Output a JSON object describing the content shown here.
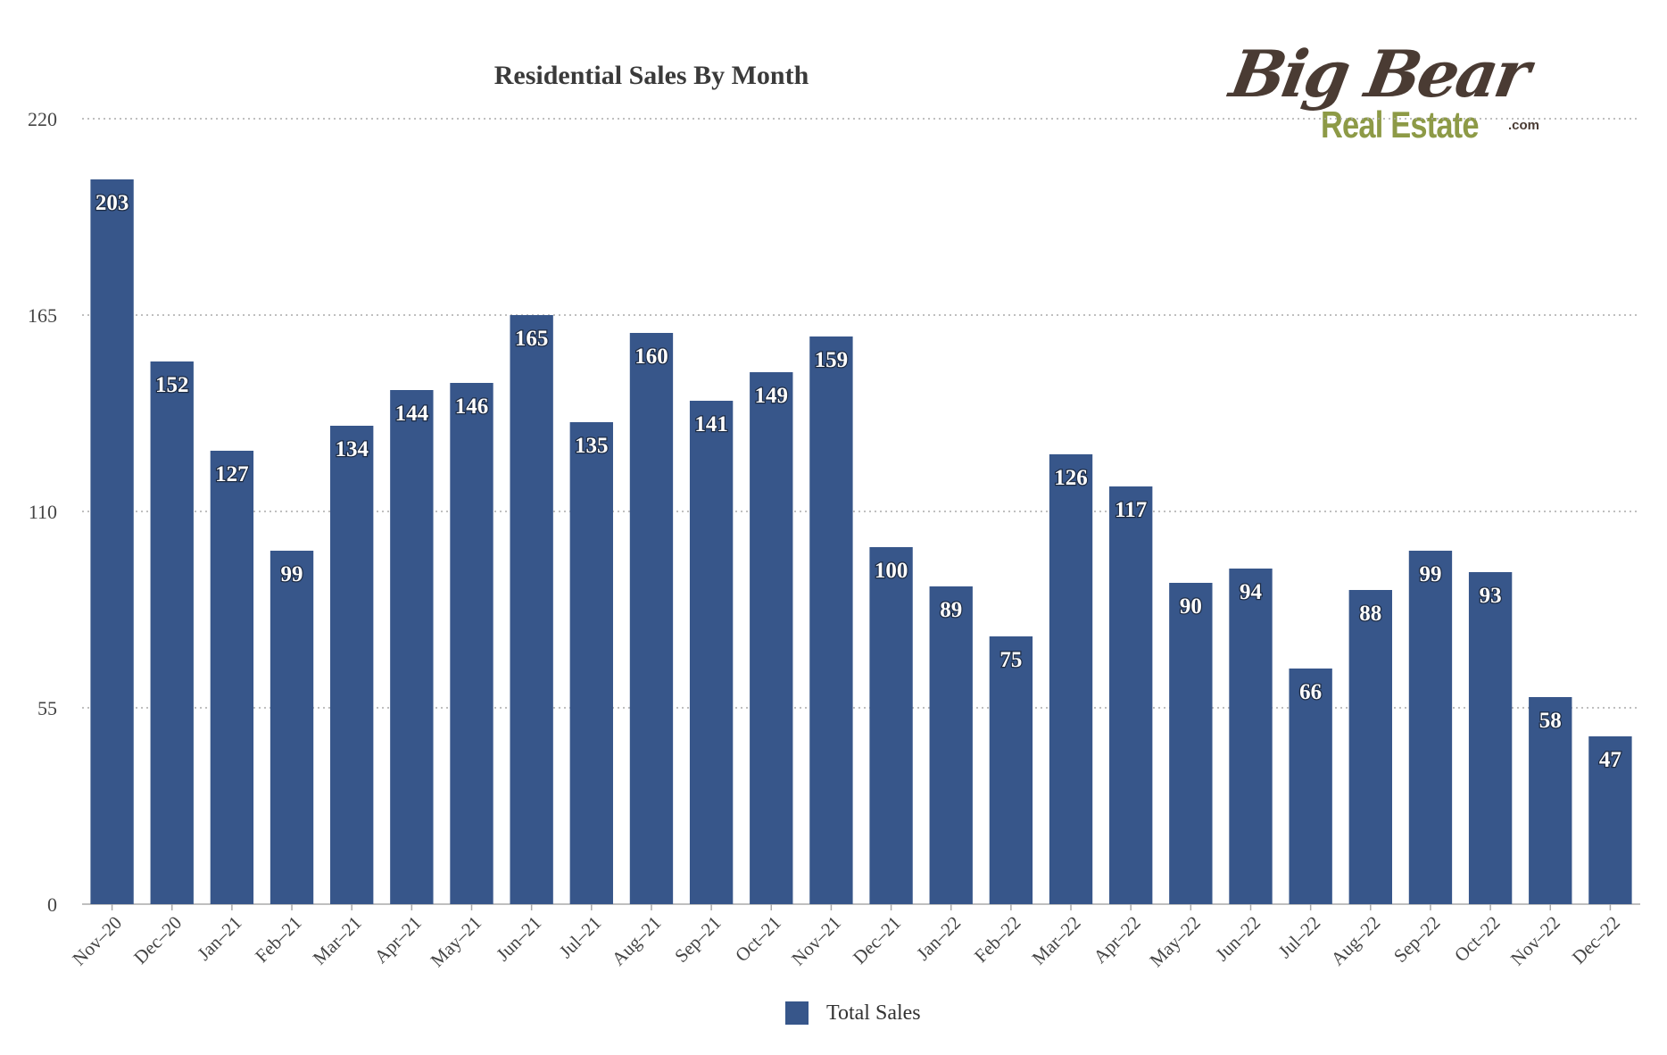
{
  "chart_data": {
    "type": "bar",
    "title": "Residential Sales By Month",
    "categories": [
      "Nov–20",
      "Dec–20",
      "Jan–21",
      "Feb–21",
      "Mar–21",
      "Apr–21",
      "May–21",
      "Jun–21",
      "Jul–21",
      "Aug–21",
      "Sep–21",
      "Oct–21",
      "Nov–21",
      "Dec–21",
      "Jan–22",
      "Feb–22",
      "Mar–22",
      "Apr–22",
      "May–22",
      "Jun–22",
      "Jul–22",
      "Aug–22",
      "Sep–22",
      "Oct–22",
      "Nov–22",
      "Dec–22"
    ],
    "series": [
      {
        "name": "Total Sales",
        "values": [
          203,
          152,
          127,
          99,
          134,
          144,
          146,
          165,
          135,
          160,
          141,
          149,
          159,
          100,
          89,
          75,
          126,
          117,
          90,
          94,
          66,
          88,
          99,
          93,
          58,
          47
        ]
      }
    ],
    "yticks": [
      0,
      55,
      110,
      165,
      220
    ],
    "ylim": [
      0,
      220
    ],
    "grid": true,
    "legend_position": "bottom",
    "bar_color": "#37568a",
    "data_labels": true
  },
  "logo": {
    "line1": "Big Bear",
    "line2": "Real Estate",
    "suffix": ".com"
  }
}
